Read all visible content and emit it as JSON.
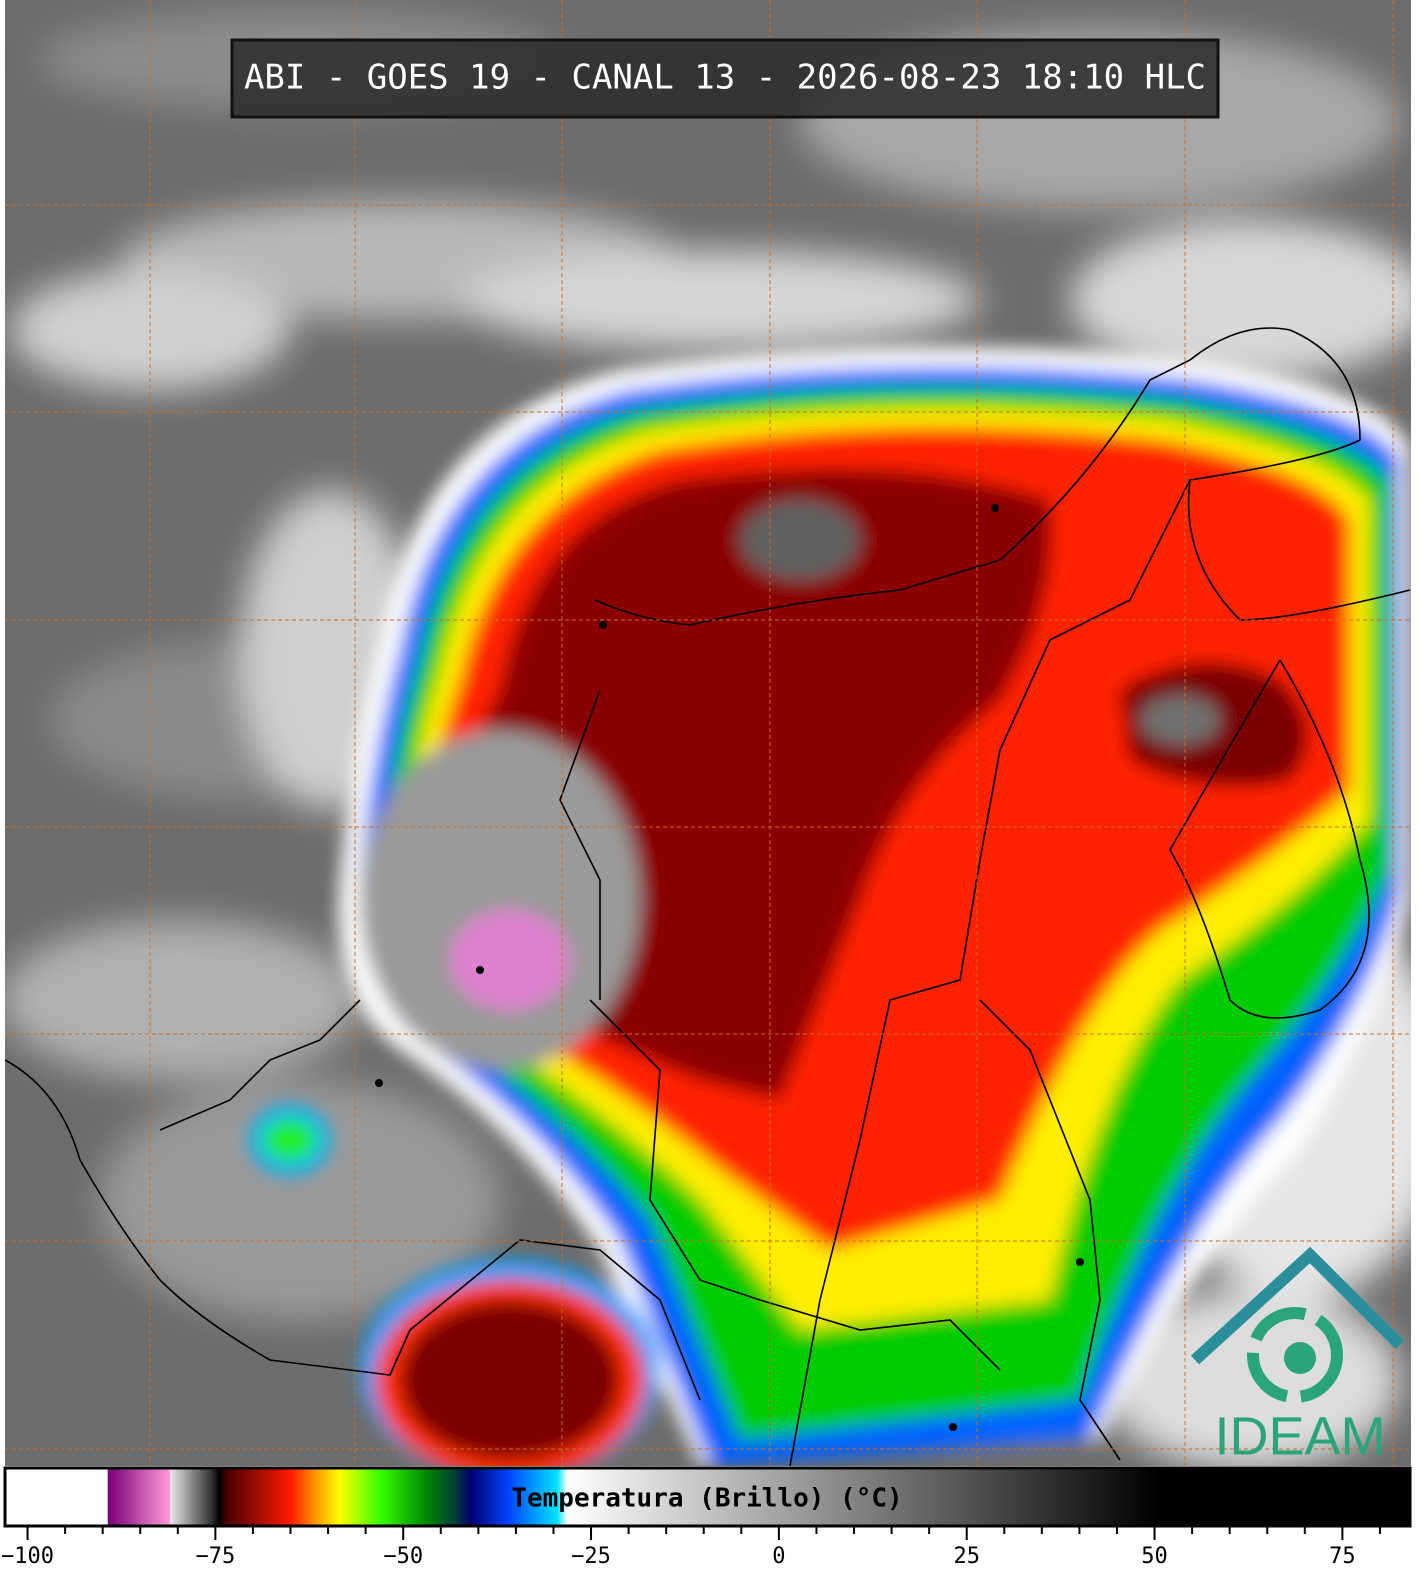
{
  "title": "ABI - GOES 19 - CANAL 13 - 2026-08-23 18:10 HLC",
  "logo": "IDEAM",
  "colorbar": {
    "label": "Temperatura (Brillo) (°C)",
    "lim": [
      -103,
      84
    ],
    "ticks": [
      {
        "value": -100,
        "label": "−100"
      },
      {
        "value": -75,
        "label": "−75"
      },
      {
        "value": -50,
        "label": "−50"
      },
      {
        "value": -25,
        "label": "−25"
      },
      0,
      25,
      50,
      75
    ],
    "minor_ticks": [
      -95,
      -90,
      -85,
      -80,
      -70,
      -65,
      -60,
      -55,
      -45,
      -40,
      -35,
      -30,
      -20,
      -15,
      -10,
      -5,
      5,
      10,
      15,
      20,
      30,
      35,
      40,
      45,
      55,
      60,
      65,
      70,
      80
    ],
    "stops": [
      {
        "value": -103,
        "color": "#ffffff"
      },
      {
        "value": -89.4,
        "color": "#ffffff"
      },
      {
        "value": -89.3,
        "color": "#7a007a"
      },
      {
        "value": -81.1,
        "color": "#ff9ad8"
      },
      {
        "value": -81,
        "color": "#e8e8e8"
      },
      {
        "value": -75.5,
        "color": "#303030"
      },
      {
        "value": -74.5,
        "color": "#000000"
      },
      {
        "value": -73.5,
        "color": "#4a0000"
      },
      {
        "value": -65,
        "color": "#ff1a00"
      },
      {
        "value": -62,
        "color": "#ff8c00"
      },
      {
        "value": -58.5,
        "color": "#ffff00"
      },
      {
        "value": -53,
        "color": "#33ff00"
      },
      {
        "value": -47,
        "color": "#008800"
      },
      {
        "value": -43,
        "color": "#003a3a"
      },
      {
        "value": -41,
        "color": "#000070"
      },
      {
        "value": -36,
        "color": "#0044ff"
      },
      {
        "value": -29.5,
        "color": "#00e5ff"
      },
      {
        "value": -28.2,
        "color": "#ffffff"
      },
      {
        "value": 50.4,
        "color": "#000000"
      },
      {
        "value": 84,
        "color": "#000000"
      }
    ]
  }
}
